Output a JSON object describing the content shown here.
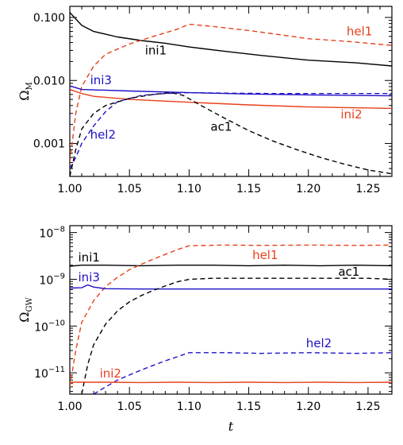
{
  "colors": {
    "black": "#000000",
    "red": "#e8401c",
    "blue": "#1e10c8"
  },
  "chart_data": [
    {
      "type": "line",
      "ylabel": "Ω_M",
      "ylabel_main": "Ω",
      "ylabel_sub": "M",
      "xlim": [
        1.0,
        1.27
      ],
      "ylim": [
        0.0003,
        0.15
      ],
      "yscale": "log",
      "x_ticks": [
        "1.00",
        "1.05",
        "1.10",
        "1.15",
        "1.20",
        "1.25"
      ],
      "x_tick_values": [
        1.0,
        1.05,
        1.1,
        1.15,
        1.2,
        1.25
      ],
      "y_ticks": [
        "0.001",
        "0.010",
        "0.100"
      ],
      "y_tick_values": [
        0.001,
        0.01,
        0.1
      ],
      "series": [
        {
          "name": "ini1",
          "color": "black",
          "dash": "solid",
          "x": [
            1.0,
            1.01,
            1.02,
            1.04,
            1.06,
            1.08,
            1.1,
            1.13,
            1.16,
            1.2,
            1.24,
            1.27
          ],
          "y": [
            0.12,
            0.075,
            0.06,
            0.049,
            0.043,
            0.039,
            0.034,
            0.029,
            0.025,
            0.021,
            0.019,
            0.017
          ]
        },
        {
          "name": "hel1",
          "color": "red",
          "dash": "dash",
          "x": [
            1.0,
            1.005,
            1.01,
            1.02,
            1.03,
            1.05,
            1.07,
            1.09,
            1.1,
            1.12,
            1.15,
            1.18,
            1.2,
            1.23,
            1.27
          ],
          "y": [
            0.0005,
            0.003,
            0.008,
            0.017,
            0.026,
            0.038,
            0.05,
            0.065,
            0.078,
            0.072,
            0.062,
            0.052,
            0.046,
            0.042,
            0.036
          ]
        },
        {
          "name": "ini3",
          "color": "blue",
          "dash": "solid",
          "x": [
            1.0,
            1.01,
            1.05,
            1.1,
            1.15,
            1.2,
            1.27
          ],
          "y": [
            0.0082,
            0.0072,
            0.0068,
            0.0064,
            0.0061,
            0.0059,
            0.0057
          ]
        },
        {
          "name": "ini2",
          "color": "red",
          "dash": "solid",
          "x": [
            1.0,
            1.01,
            1.02,
            1.05,
            1.1,
            1.15,
            1.2,
            1.27
          ],
          "y": [
            0.0072,
            0.0062,
            0.0056,
            0.005,
            0.0045,
            0.0041,
            0.0038,
            0.0036
          ]
        },
        {
          "name": "hel2",
          "color": "blue",
          "dash": "dash",
          "x": [
            1.0,
            1.005,
            1.01,
            1.02,
            1.03,
            1.04,
            1.06,
            1.08,
            1.1,
            1.13,
            1.17,
            1.22,
            1.27
          ],
          "y": [
            0.0004,
            0.0006,
            0.001,
            0.0019,
            0.0032,
            0.0046,
            0.0058,
            0.0062,
            0.0064,
            0.0063,
            0.0062,
            0.0062,
            0.0062
          ]
        },
        {
          "name": "ac1",
          "color": "black",
          "dash": "dash",
          "x": [
            1.0,
            1.005,
            1.01,
            1.02,
            1.03,
            1.05,
            1.07,
            1.085,
            1.095,
            1.11,
            1.13,
            1.15,
            1.17,
            1.19,
            1.21,
            1.23,
            1.25,
            1.27
          ],
          "y": [
            0.0003,
            0.0008,
            0.0017,
            0.003,
            0.004,
            0.0052,
            0.006,
            0.0064,
            0.0058,
            0.004,
            0.0025,
            0.0016,
            0.0011,
            0.0008,
            0.0006,
            0.00047,
            0.00038,
            0.00033
          ]
        }
      ],
      "labels": [
        {
          "series": "ini1",
          "text": "ini1",
          "color": "black",
          "x": 1.063,
          "y": 0.026
        },
        {
          "series": "hel1",
          "color": "red",
          "text": "hel1",
          "x": 1.232,
          "y": 0.052
        },
        {
          "series": "ini3",
          "color": "blue",
          "text": "ini3",
          "x": 1.017,
          "y": 0.0087
        },
        {
          "series": "ini2",
          "color": "red",
          "text": "ini2",
          "x": 1.227,
          "y": 0.0025
        },
        {
          "series": "hel2",
          "color": "blue",
          "text": "hel2",
          "x": 1.017,
          "y": 0.0012
        },
        {
          "series": "ac1",
          "color": "black",
          "text": "ac1",
          "x": 1.118,
          "y": 0.0016
        }
      ]
    },
    {
      "type": "line",
      "xlabel": "t",
      "ylabel": "Ω_GW",
      "ylabel_main": "Ω",
      "ylabel_sub": "GW",
      "xlim": [
        1.0,
        1.27
      ],
      "ylim": [
        3.5e-12,
        1.4e-08
      ],
      "yscale": "log",
      "x_ticks": [
        "1.00",
        "1.05",
        "1.10",
        "1.15",
        "1.20",
        "1.25"
      ],
      "x_tick_values": [
        1.0,
        1.05,
        1.1,
        1.15,
        1.2,
        1.25
      ],
      "y_ticks": [
        {
          "base": "10",
          "exp": "−8"
        },
        {
          "base": "10",
          "exp": "−9"
        },
        {
          "base": "10",
          "exp": "−10"
        },
        {
          "base": "10",
          "exp": "−11"
        }
      ],
      "y_tick_values": [
        1e-08,
        1e-09,
        1e-10,
        1e-11
      ],
      "series": [
        {
          "name": "ini1",
          "color": "black",
          "dash": "solid",
          "x": [
            1.0,
            1.01,
            1.03,
            1.06,
            1.09,
            1.12,
            1.15,
            1.18,
            1.21,
            1.24,
            1.27
          ],
          "y": [
            1.9e-09,
            2e-09,
            2e-09,
            1.95e-09,
            2e-09,
            2e-09,
            1.95e-09,
            2e-09,
            1.95e-09,
            2e-09,
            1.95e-09
          ]
        },
        {
          "name": "hel1",
          "color": "red",
          "dash": "dash",
          "x": [
            1.0,
            1.005,
            1.01,
            1.02,
            1.03,
            1.04,
            1.05,
            1.06,
            1.07,
            1.08,
            1.09,
            1.1,
            1.13,
            1.16,
            1.2,
            1.24,
            1.27
          ],
          "y": [
            5e-12,
            3e-11,
            1.2e-10,
            3.5e-10,
            7e-10,
            1.1e-09,
            1.6e-09,
            2.1e-09,
            2.7e-09,
            3.4e-09,
            4.3e-09,
            5.2e-09,
            5.4e-09,
            5.3e-09,
            5.4e-09,
            5.3e-09,
            5.4e-09
          ]
        },
        {
          "name": "ini3",
          "color": "blue",
          "dash": "solid",
          "x": [
            1.0,
            1.01,
            1.015,
            1.02,
            1.03,
            1.06,
            1.1,
            1.15,
            1.2,
            1.27
          ],
          "y": [
            6.5e-10,
            6.6e-10,
            7.6e-10,
            6.8e-10,
            6.3e-10,
            6.2e-10,
            6.2e-10,
            6.2e-10,
            6.2e-10,
            6.2e-10
          ]
        },
        {
          "name": "ac1",
          "color": "black",
          "dash": "dash",
          "x": [
            1.01,
            1.015,
            1.02,
            1.03,
            1.04,
            1.05,
            1.06,
            1.07,
            1.08,
            1.09,
            1.1,
            1.12,
            1.15,
            1.2,
            1.25,
            1.27
          ],
          "y": [
            3.5e-12,
            1.5e-11,
            4e-11,
            1.1e-10,
            2.1e-10,
            3.3e-10,
            4.5e-10,
            5.8e-10,
            7.2e-10,
            8.8e-10,
            1e-09,
            1.05e-09,
            1.05e-09,
            1.05e-09,
            1.05e-09,
            1e-09
          ]
        },
        {
          "name": "hel2",
          "color": "blue",
          "dash": "dash",
          "x": [
            1.02,
            1.03,
            1.04,
            1.05,
            1.06,
            1.07,
            1.08,
            1.09,
            1.1,
            1.13,
            1.16,
            1.2,
            1.24,
            1.27
          ],
          "y": [
            3.5e-12,
            5e-12,
            7e-12,
            9e-12,
            1.15e-11,
            1.45e-11,
            1.8e-11,
            2.2e-11,
            2.7e-11,
            2.7e-11,
            2.6e-11,
            2.7e-11,
            2.6e-11,
            2.7e-11
          ]
        },
        {
          "name": "ini2",
          "color": "red",
          "dash": "solid",
          "x": [
            1.0,
            1.03,
            1.06,
            1.09,
            1.12,
            1.15,
            1.18,
            1.21,
            1.24,
            1.27
          ],
          "y": [
            6.3e-12,
            6.3e-12,
            6.2e-12,
            6.3e-12,
            6.2e-12,
            6.3e-12,
            6.2e-12,
            6.3e-12,
            6.2e-12,
            6.3e-12
          ]
        }
      ],
      "labels": [
        {
          "series": "ini1",
          "text": "ini1",
          "color": "black",
          "x": 1.007,
          "y": 2.4e-09
        },
        {
          "series": "hel1",
          "color": "red",
          "text": "hel1",
          "x": 1.153,
          "y": 2.7e-09
        },
        {
          "series": "ac1",
          "color": "black",
          "text": "ac1",
          "x": 1.225,
          "y": 1.2e-09
        },
        {
          "series": "ini3",
          "color": "blue",
          "text": "ini3",
          "x": 1.007,
          "y": 9e-10
        },
        {
          "series": "hel2",
          "color": "blue",
          "text": "hel2",
          "x": 1.198,
          "y": 3.5e-11
        },
        {
          "series": "ini2",
          "color": "red",
          "text": "ini2",
          "x": 1.025,
          "y": 8e-12
        }
      ]
    }
  ]
}
